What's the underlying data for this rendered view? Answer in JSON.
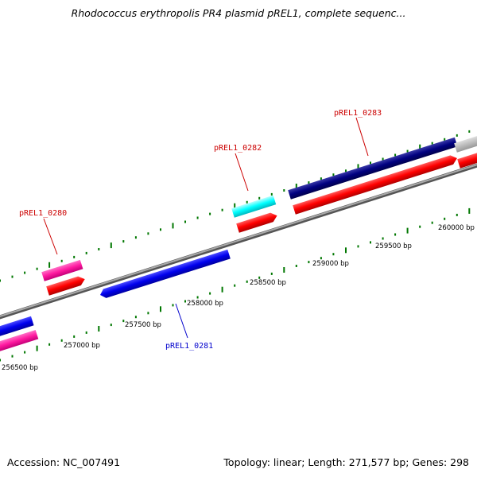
{
  "header": {
    "title": "Rhodococcus erythropolis PR4 plasmid pREL1, complete sequenc..."
  },
  "footer": {
    "accession": "Accession: NC_007491",
    "summary": "Topology: linear; Length: 271,577 bp; Genes: 298"
  },
  "ruler": {
    "labels": [
      "256500 bp",
      "257000 bp",
      "257500 bp",
      "258000 bp",
      "258500 bp",
      "259000 bp",
      "259500 bp",
      "260000 bp"
    ]
  },
  "genes": [
    {
      "label": "pREL1_0280",
      "color": "#cc0000"
    },
    {
      "label": "pREL1_0281",
      "color": "#0000cc"
    },
    {
      "label": "pREL1_0282",
      "color": "#cc0000"
    },
    {
      "label": "pREL1_0283",
      "color": "#cc0000"
    }
  ],
  "colors": {
    "forward_strand": "#ff0000",
    "reverse_blue": "#0000ee",
    "navy": "#000080",
    "cyan": "#00ffff",
    "pink": "#ff1aa0",
    "tick_green": "#007700",
    "backbone": "#888888"
  }
}
